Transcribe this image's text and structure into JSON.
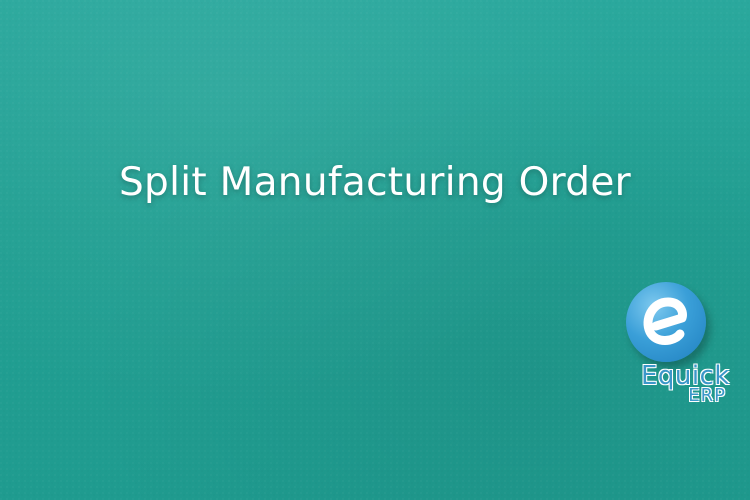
{
  "banner": {
    "title": "Split Manufacturing Order",
    "background_color": "#22a093",
    "text_color": "#ffffff"
  },
  "logo": {
    "icon": "e-letter-icon",
    "word": "Equick",
    "sub": "ERP",
    "color": "#3b97c9"
  }
}
